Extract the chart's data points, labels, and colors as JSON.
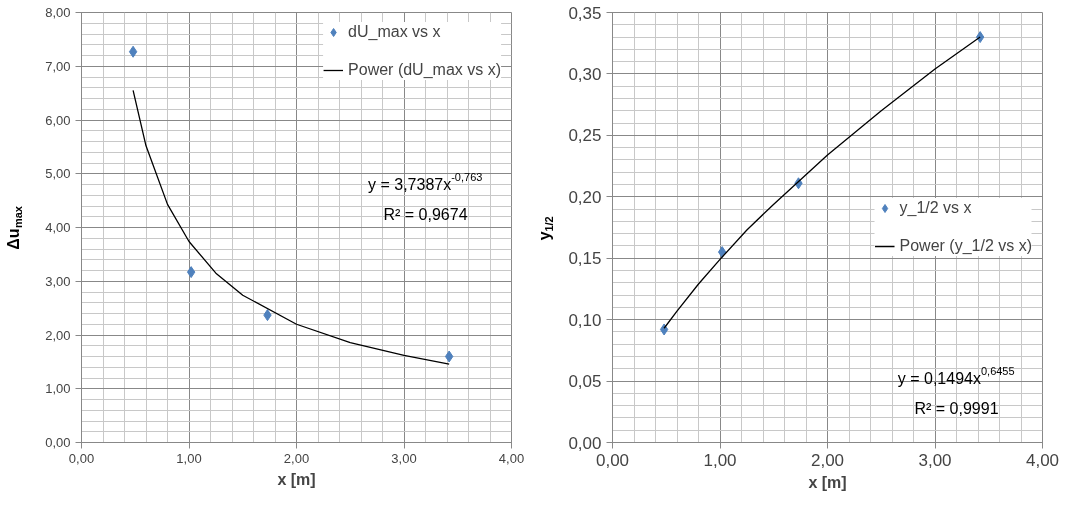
{
  "chart_data": [
    {
      "type": "scatter",
      "xlabel": "x [m]",
      "ylabel": "Δu$_{max}$",
      "xlim": [
        0,
        4
      ],
      "ylim": [
        0,
        8
      ],
      "xticks": [
        {
          "value": 0,
          "label": "0,00"
        },
        {
          "value": 1,
          "label": "1,00"
        },
        {
          "value": 2,
          "label": "2,00"
        },
        {
          "value": 3,
          "label": "3,00"
        },
        {
          "value": 4,
          "label": "4,00"
        }
      ],
      "yticks": [
        {
          "value": 0,
          "label": "0,00"
        },
        {
          "value": 1,
          "label": "1,00"
        },
        {
          "value": 2,
          "label": "2,00"
        },
        {
          "value": 3,
          "label": "3,00"
        },
        {
          "value": 4,
          "label": "4,00"
        },
        {
          "value": 5,
          "label": "5,00"
        },
        {
          "value": 6,
          "label": "6,00"
        },
        {
          "value": 7,
          "label": "7,00"
        },
        {
          "value": 8,
          "label": "8,00"
        }
      ],
      "grid": true,
      "legend": "top right",
      "annotations": [
        "y = 3,7387x$^{-0,763}$",
        "R² = 0,9674"
      ],
      "series": [
        {
          "name": "dU_max vs x",
          "marker": "diamond",
          "color": "#4f81bd",
          "x": [
            0.48,
            1.02,
            1.73,
            3.42
          ],
          "values": [
            7.27,
            3.17,
            2.37,
            1.6
          ]
        },
        {
          "name": "Power (dU_max vs x)",
          "type": "line",
          "color": "#000000",
          "x": [
            0.48,
            0.6,
            0.8,
            1.0,
            1.25,
            1.5,
            2.0,
            2.5,
            3.0,
            3.42
          ],
          "values": [
            6.55,
            5.52,
            4.43,
            3.74,
            3.15,
            2.74,
            2.2,
            1.86,
            1.62,
            1.46
          ]
        }
      ]
    },
    {
      "type": "scatter",
      "xlabel": "x [m]",
      "ylabel": "y$_{1/2}$",
      "xlim": [
        0,
        4
      ],
      "ylim": [
        0,
        0.35
      ],
      "xticks": [
        {
          "value": 0,
          "label": "0,00"
        },
        {
          "value": 1,
          "label": "1,00"
        },
        {
          "value": 2,
          "label": "2,00"
        },
        {
          "value": 3,
          "label": "3,00"
        },
        {
          "value": 4,
          "label": "4,00"
        }
      ],
      "yticks": [
        {
          "value": 0,
          "label": "0,00"
        },
        {
          "value": 0.05,
          "label": "0,05"
        },
        {
          "value": 0.1,
          "label": "0,10"
        },
        {
          "value": 0.15,
          "label": "0,15"
        },
        {
          "value": 0.2,
          "label": "0,20"
        },
        {
          "value": 0.25,
          "label": "0,25"
        },
        {
          "value": 0.3,
          "label": "0,30"
        },
        {
          "value": 0.35,
          "label": "0,35"
        }
      ],
      "grid": true,
      "legend": "right",
      "annotations": [
        "y = 0,1494x$^{0,6455}$",
        "R² = 0,9991"
      ],
      "series": [
        {
          "name": "y_1/2 vs x",
          "marker": "diamond",
          "color": "#4f81bd",
          "x": [
            0.48,
            1.02,
            1.73,
            3.42
          ],
          "values": [
            0.092,
            0.155,
            0.211,
            0.33
          ]
        },
        {
          "name": "Power (y_1/2 vs x)",
          "type": "line",
          "color": "#000000",
          "x": [
            0.48,
            0.6,
            0.8,
            1.0,
            1.25,
            1.5,
            2.0,
            2.5,
            3.0,
            3.42
          ],
          "values": [
            0.093,
            0.107,
            0.129,
            0.149,
            0.173,
            0.194,
            0.234,
            0.27,
            0.304,
            0.33
          ]
        }
      ]
    }
  ]
}
